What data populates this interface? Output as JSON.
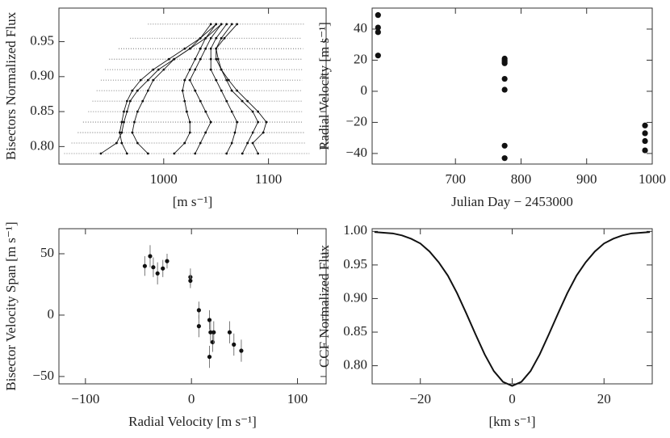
{
  "chart_data": [
    {
      "type": "line",
      "ylabel": "Bisectors Normalized Flux",
      "xlabel": "[m s⁻¹]",
      "xlim": [
        900,
        1155
      ],
      "ylim": [
        0.775,
        0.998
      ],
      "xticks": [
        1000,
        1100
      ],
      "yticks": [
        {
          "value": 0.8,
          "label": "0.80"
        },
        0.85,
        {
          "value": 0.9,
          "label": "0.90"
        },
        0.95
      ],
      "color": "#111111",
      "y": [
        0.79,
        0.805,
        0.82,
        0.835,
        0.85,
        0.865,
        0.88,
        0.895,
        0.91,
        0.925,
        0.94,
        0.955,
        0.975
      ],
      "error_bars": {
        "center": [
          1022,
          1024,
          1026,
          1028,
          1030,
          1032,
          1034,
          1036,
          1038,
          1040,
          1045,
          1050,
          1060
        ],
        "half_width": [
          117,
          112,
          108,
          105,
          102,
          100,
          98,
          96,
          94,
          92,
          88,
          82,
          75
        ]
      },
      "series": [
        {
          "values": [
            940,
            955,
            960,
            962,
            965,
            968,
            975,
            985,
            995,
            1010,
            1025,
            1040,
            1055
          ]
        },
        {
          "values": [
            965,
            960,
            958,
            960,
            962,
            965,
            970,
            978,
            990,
            1005,
            1020,
            1035,
            1050
          ]
        },
        {
          "values": [
            985,
            975,
            970,
            972,
            975,
            980,
            985,
            990,
            1000,
            1010,
            1025,
            1035,
            1045
          ]
        },
        {
          "values": [
            1010,
            1020,
            1025,
            1025,
            1022,
            1020,
            1018,
            1020,
            1025,
            1030,
            1035,
            1040,
            1050
          ]
        },
        {
          "values": [
            1030,
            1035,
            1040,
            1045,
            1040,
            1035,
            1030,
            1025,
            1030,
            1035,
            1040,
            1045,
            1055
          ]
        },
        {
          "values": [
            1060,
            1065,
            1068,
            1070,
            1065,
            1060,
            1055,
            1050,
            1045,
            1045,
            1045,
            1050,
            1060
          ]
        },
        {
          "values": [
            1075,
            1080,
            1085,
            1090,
            1085,
            1075,
            1065,
            1060,
            1055,
            1050,
            1050,
            1055,
            1065
          ]
        },
        {
          "values": [
            1090,
            1085,
            1095,
            1098,
            1090,
            1080,
            1070,
            1062,
            1055,
            1052,
            1050,
            1058,
            1070
          ]
        }
      ]
    },
    {
      "type": "scatter",
      "ylabel": "Radial Velocity [m s⁻¹]",
      "xlabel": "Julian Day − 2453000",
      "xlim": [
        573,
        1000
      ],
      "ylim": [
        -46.8,
        53.5
      ],
      "xticks": [
        700,
        800,
        900,
        1000
      ],
      "yticks": [
        {
          "value": -40,
          "label": "−40"
        },
        {
          "value": -20,
          "label": "−20"
        },
        0,
        20,
        40
      ],
      "color": "#111111",
      "x": [
        582,
        582,
        582,
        582,
        775,
        775,
        775,
        775,
        775,
        775,
        775,
        775,
        989,
        989,
        989,
        989
      ],
      "values": [
        49,
        41,
        38,
        23,
        21,
        20,
        19,
        18,
        8,
        1,
        -35,
        -43,
        -22,
        -27,
        -32,
        -38
      ]
    },
    {
      "type": "scatter",
      "ylabel": "Bisector Velocity Span [m s⁻¹]",
      "xlabel": "Radial Velocity [m s⁻¹]",
      "xlim": [
        -125,
        127
      ],
      "ylim": [
        -56,
        70.4
      ],
      "xticks": [
        {
          "value": -100,
          "label": "−100"
        },
        0,
        100
      ],
      "yticks": [
        {
          "value": -50,
          "label": "−50"
        },
        0,
        50
      ],
      "color": "#111111",
      "x": [
        -44,
        -39,
        -36,
        -32,
        -27,
        -23,
        -1,
        -1,
        7,
        7,
        17,
        17,
        18,
        20,
        21,
        36,
        40,
        47
      ],
      "values": [
        40,
        48,
        39,
        34,
        38,
        44,
        31,
        28,
        4,
        -9,
        -4,
        -34,
        -14,
        -22,
        -14,
        -14,
        -24,
        -29
      ],
      "errors": [
        8,
        9,
        8,
        9,
        7,
        6,
        7,
        6,
        7,
        9,
        8,
        9,
        9,
        8,
        9,
        9,
        9,
        9
      ]
    },
    {
      "type": "line",
      "ylabel": "CCF Normalized Flux",
      "xlabel": "[km s⁻¹]",
      "xlim": [
        -30.5,
        30.5
      ],
      "ylim": [
        0.773,
        1.004
      ],
      "xticks": [
        {
          "value": -20,
          "label": "−20"
        },
        0,
        20
      ],
      "yticks": [
        {
          "value": 0.8,
          "label": "0.80"
        },
        0.85,
        {
          "value": 0.9,
          "label": "0.90"
        },
        0.95,
        {
          "value": 1.0,
          "label": "1.00"
        }
      ],
      "color": "#111111",
      "x": [
        -30,
        -28,
        -26,
        -24,
        -22,
        -20,
        -18,
        -16,
        -14,
        -12,
        -10,
        -8,
        -6,
        -4,
        -2,
        0,
        2,
        4,
        6,
        8,
        10,
        12,
        14,
        16,
        18,
        20,
        22,
        24,
        26,
        28,
        30
      ],
      "values": [
        0.999,
        0.998,
        0.997,
        0.994,
        0.989,
        0.982,
        0.97,
        0.954,
        0.934,
        0.908,
        0.878,
        0.847,
        0.817,
        0.792,
        0.776,
        0.77,
        0.776,
        0.792,
        0.817,
        0.847,
        0.878,
        0.908,
        0.934,
        0.954,
        0.97,
        0.982,
        0.989,
        0.994,
        0.997,
        0.998,
        0.999
      ]
    }
  ]
}
